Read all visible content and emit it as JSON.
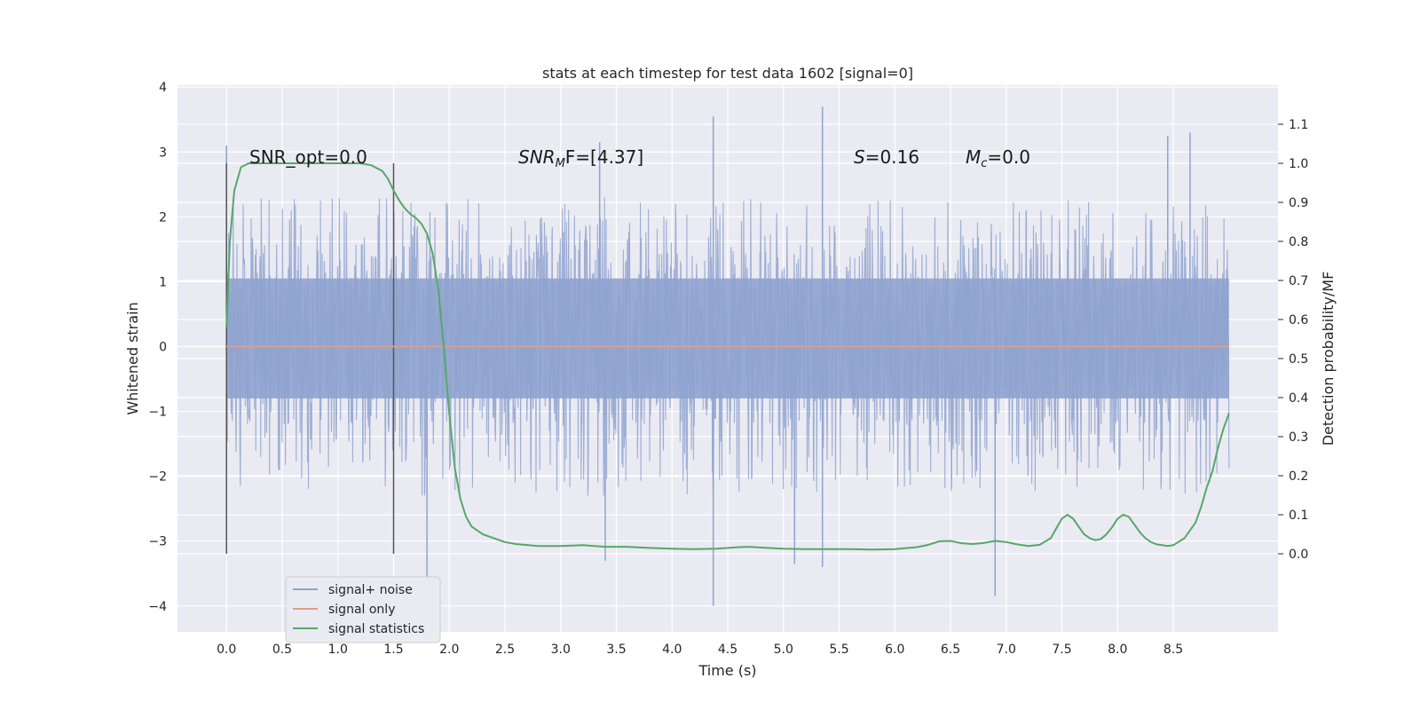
{
  "chart_data": {
    "type": "line",
    "title": "stats at each timestep for test data 1602 [signal=0]",
    "xlabel": "Time (s)",
    "ylabel": "Whitened strain",
    "ylabel_right": "Detection probability/MF",
    "xlim": [
      -0.44,
      9.44
    ],
    "ylim": [
      -4.4,
      4.03
    ],
    "ylim_right": [
      -0.2,
      1.2
    ],
    "x_ticks": [
      "0.0",
      "0.5",
      "1.0",
      "1.5",
      "2.0",
      "2.5",
      "3.0",
      "3.5",
      "4.0",
      "4.5",
      "5.0",
      "5.5",
      "6.0",
      "6.5",
      "7.0",
      "7.5",
      "8.0",
      "8.5"
    ],
    "y_ticks": [
      "−4",
      "−3",
      "−2",
      "−1",
      "0",
      "1",
      "2",
      "3",
      "4"
    ],
    "y_ticks_right": [
      "0.0",
      "0.1",
      "0.2",
      "0.3",
      "0.4",
      "0.5",
      "0.6",
      "0.7",
      "0.8",
      "0.9",
      "1.0",
      "1.1"
    ],
    "grid": true,
    "legend_position": "lower-left",
    "annotations": {
      "snr_opt": "SNR_opt=0.0",
      "snr_mf_prefix": "SNR",
      "snr_mf_sub": "M",
      "snr_mf_suffix": "F=[4.37]",
      "s_prefix": "S",
      "s_suffix": "=0.16",
      "mc_prefix": "M",
      "mc_sub": "c",
      "mc_suffix": "=0.0"
    },
    "vertical_markers": [
      0.0,
      1.5
    ],
    "noise_envelope": {
      "x_range": [
        0.0,
        9.0
      ],
      "dense_band": [
        -0.8,
        1.05
      ],
      "typical_extent": [
        -2.3,
        2.3
      ],
      "notable_peaks": [
        {
          "x": 0.0,
          "y": 3.1
        },
        {
          "x": 4.37,
          "y": 3.55
        },
        {
          "x": 5.35,
          "y": 3.7
        },
        {
          "x": 8.65,
          "y": 3.3
        },
        {
          "x": 8.45,
          "y": 3.25
        },
        {
          "x": 3.35,
          "y": 3.15
        },
        {
          "x": 4.37,
          "y": -4.0
        },
        {
          "x": 6.9,
          "y": -3.85
        },
        {
          "x": 1.8,
          "y": -3.55
        },
        {
          "x": 5.35,
          "y": -3.4
        },
        {
          "x": 5.1,
          "y": -3.35
        },
        {
          "x": 3.4,
          "y": -3.3
        }
      ]
    },
    "series": [
      {
        "name": "signal+ noise",
        "color": "#8fa3cf",
        "style": "dense noise trace"
      },
      {
        "name": "signal only",
        "color": "#dd9e86",
        "x": [
          0.0,
          9.0
        ],
        "y": [
          0.0,
          0.0
        ]
      },
      {
        "name": "signal statistics",
        "color": "#55a868",
        "axis": "right",
        "x": [
          0.0,
          0.03,
          0.07,
          0.13,
          0.2,
          0.3,
          0.5,
          0.8,
          1.0,
          1.2,
          1.3,
          1.4,
          1.45,
          1.5,
          1.55,
          1.6,
          1.65,
          1.7,
          1.75,
          1.8,
          1.85,
          1.9,
          1.95,
          2.0,
          2.05,
          2.1,
          2.15,
          2.2,
          2.3,
          2.4,
          2.5,
          2.6,
          2.8,
          3.0,
          3.2,
          3.4,
          3.6,
          3.8,
          4.0,
          4.2,
          4.4,
          4.6,
          4.7,
          4.8,
          5.0,
          5.2,
          5.4,
          5.6,
          5.8,
          6.0,
          6.2,
          6.3,
          6.4,
          6.5,
          6.55,
          6.6,
          6.7,
          6.8,
          6.9,
          7.0,
          7.1,
          7.2,
          7.3,
          7.4,
          7.45,
          7.5,
          7.55,
          7.6,
          7.65,
          7.7,
          7.75,
          7.8,
          7.85,
          7.9,
          7.95,
          8.0,
          8.05,
          8.1,
          8.15,
          8.2,
          8.25,
          8.3,
          8.35,
          8.4,
          8.45,
          8.5,
          8.6,
          8.7,
          8.75,
          8.8,
          8.85,
          8.9,
          8.95,
          9.0
        ],
        "y": [
          0.58,
          0.8,
          0.93,
          0.99,
          1.0,
          1.0,
          1.0,
          1.0,
          1.0,
          1.0,
          0.995,
          0.98,
          0.96,
          0.93,
          0.905,
          0.885,
          0.87,
          0.86,
          0.845,
          0.82,
          0.77,
          0.68,
          0.53,
          0.36,
          0.22,
          0.14,
          0.095,
          0.07,
          0.05,
          0.04,
          0.03,
          0.025,
          0.02,
          0.02,
          0.022,
          0.018,
          0.018,
          0.015,
          0.013,
          0.012,
          0.013,
          0.017,
          0.018,
          0.016,
          0.013,
          0.012,
          0.012,
          0.012,
          0.011,
          0.012,
          0.017,
          0.023,
          0.032,
          0.033,
          0.03,
          0.027,
          0.025,
          0.028,
          0.033,
          0.03,
          0.024,
          0.02,
          0.023,
          0.04,
          0.065,
          0.09,
          0.1,
          0.09,
          0.07,
          0.05,
          0.04,
          0.035,
          0.038,
          0.05,
          0.068,
          0.09,
          0.1,
          0.095,
          0.075,
          0.055,
          0.04,
          0.03,
          0.024,
          0.022,
          0.02,
          0.022,
          0.04,
          0.08,
          0.12,
          0.17,
          0.21,
          0.27,
          0.32,
          0.36
        ]
      }
    ]
  },
  "legend": {
    "noise_label": "signal+ noise",
    "signal_label": "signal only",
    "stats_label": "signal statistics"
  }
}
